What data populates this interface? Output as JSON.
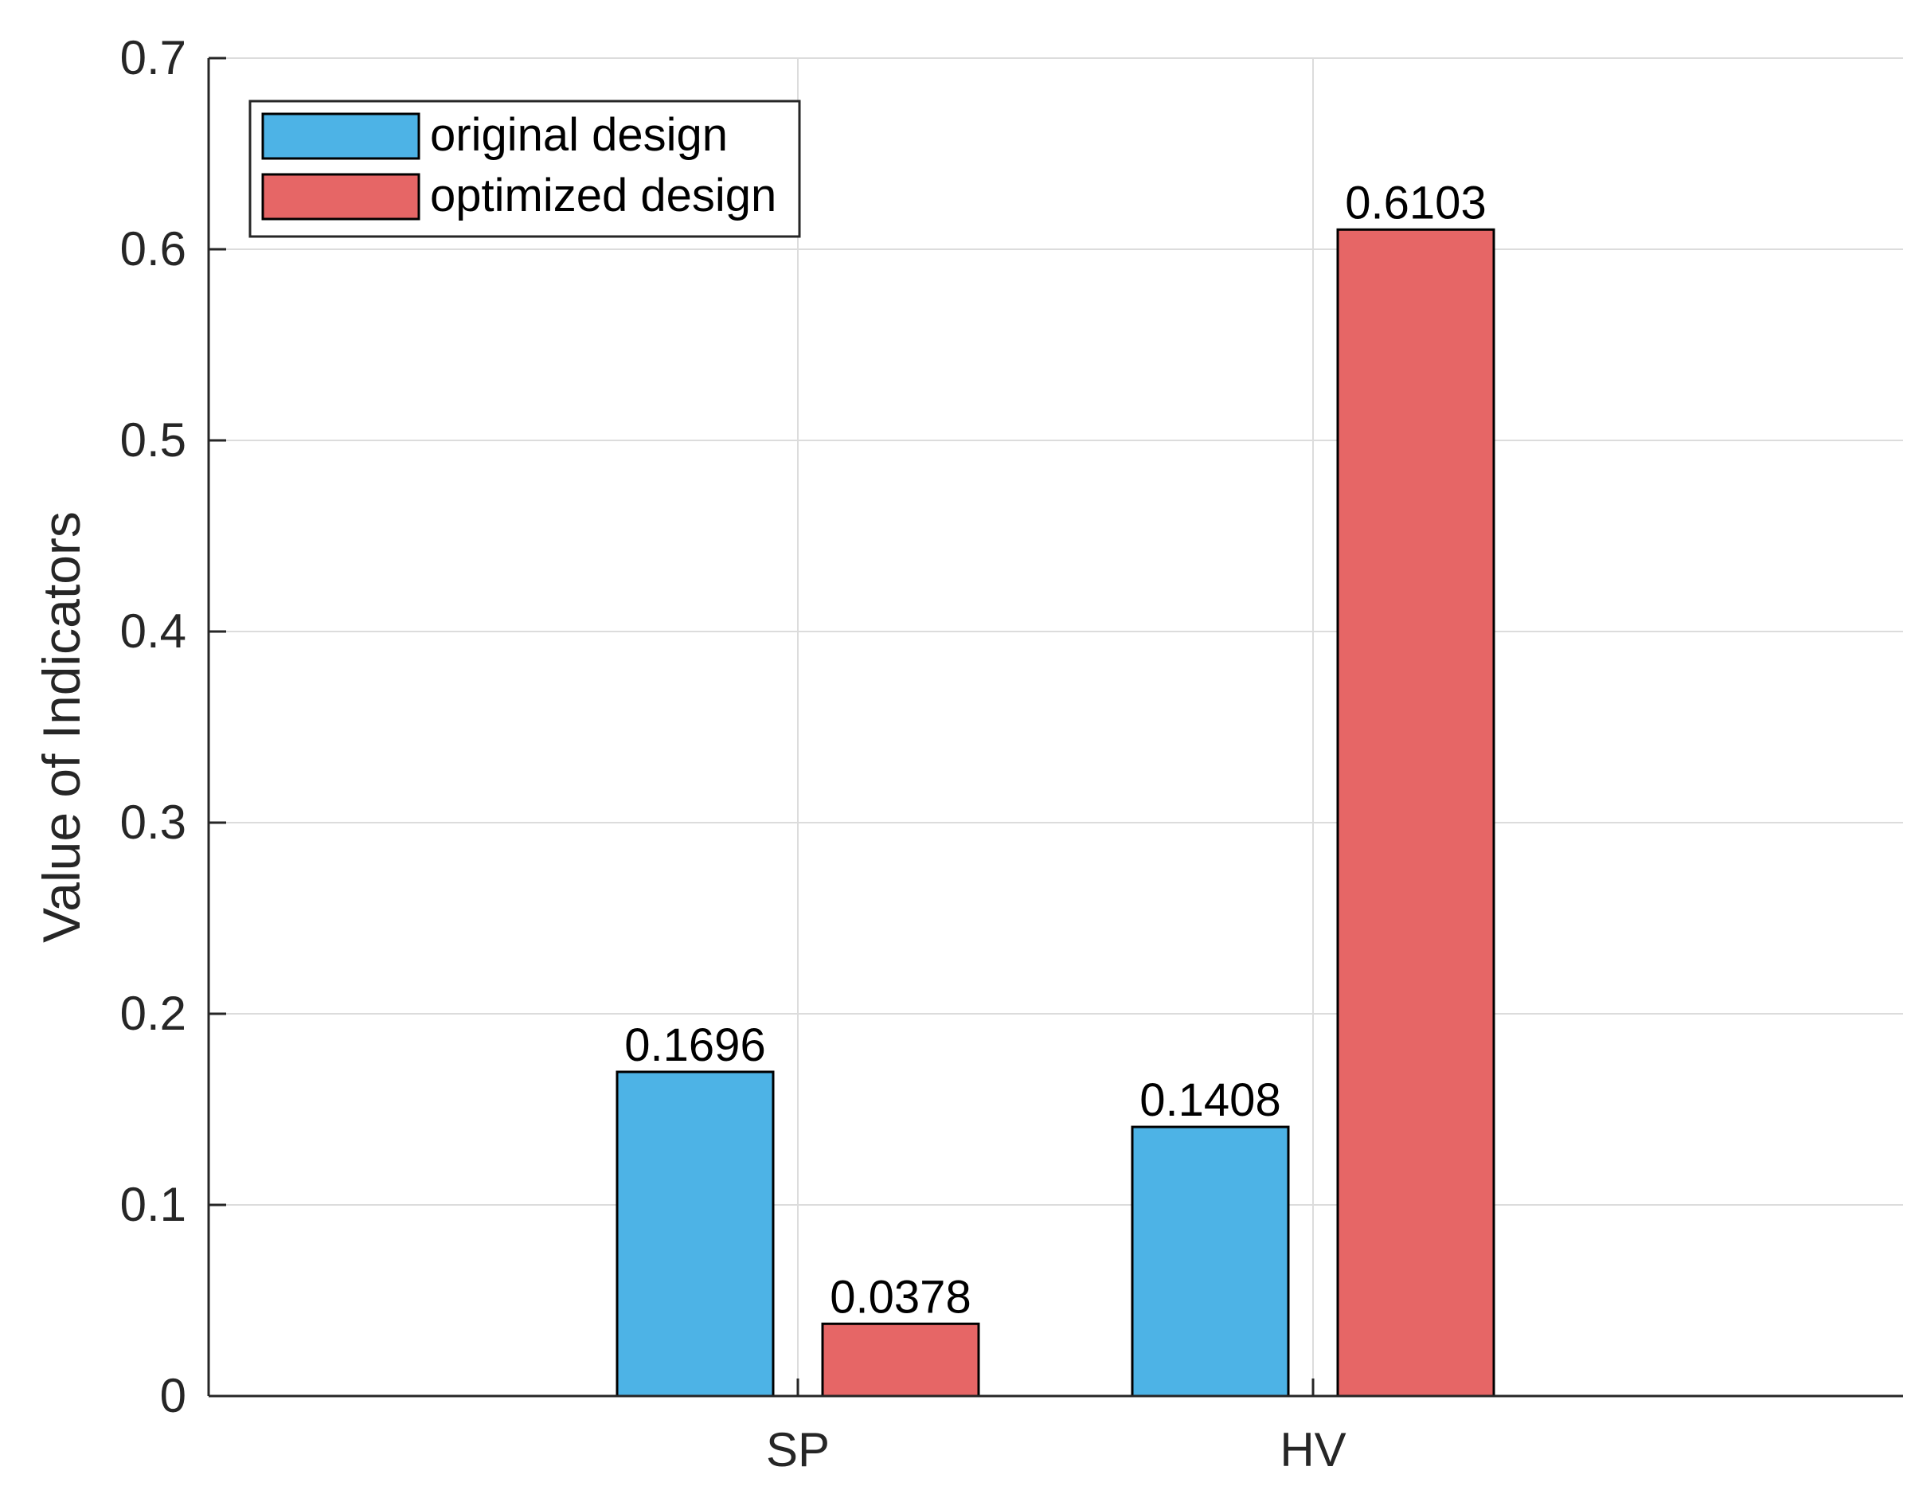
{
  "chart_data": {
    "type": "bar",
    "categories": [
      "SP",
      "HV"
    ],
    "series": [
      {
        "name": "original design",
        "values": [
          0.1696,
          0.1408
        ],
        "color": "#4DB3E6"
      },
      {
        "name": "optimized design",
        "values": [
          0.0378,
          0.6103
        ],
        "color": "#E66666"
      }
    ],
    "data_labels": [
      [
        "0.1696",
        "0.1408"
      ],
      [
        "0.0378",
        "0.6103"
      ]
    ],
    "title": "",
    "xlabel": "",
    "ylabel": "Value of Indicators",
    "ylim": [
      0,
      0.7
    ],
    "yticks": [
      0,
      0.1,
      0.2,
      0.3,
      0.4,
      0.5,
      0.6,
      0.7
    ],
    "ytick_labels": [
      "0",
      "0.1",
      "0.2",
      "0.3",
      "0.4",
      "0.5",
      "0.6",
      "0.7"
    ],
    "grid": true,
    "legend_position": "top-left"
  }
}
